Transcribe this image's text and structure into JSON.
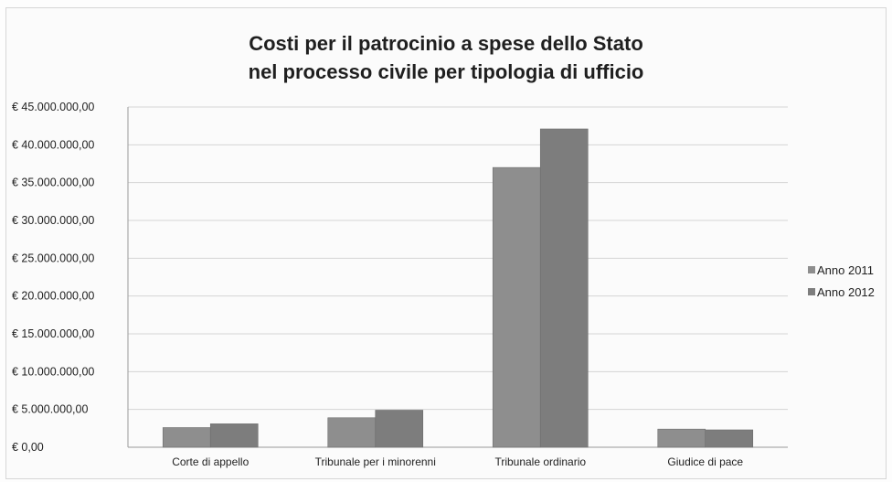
{
  "chart_data": {
    "type": "bar",
    "title": "Costi per il patrocinio a spese dello Stato",
    "subtitle": "nel processo civile per tipologia di ufficio",
    "categories": [
      "Corte di appello",
      "Tribunale per i minorenni",
      "Tribunale ordinario",
      "Giudice di pace"
    ],
    "series": [
      {
        "name": "Anno 2011",
        "values": [
          2600000,
          3900000,
          37000000,
          2400000
        ],
        "color": "#8e8e8e"
      },
      {
        "name": "Anno 2012",
        "values": [
          3100000,
          4900000,
          42100000,
          2300000
        ],
        "color": "#7d7d7d"
      }
    ],
    "ylim": [
      0,
      45000000
    ],
    "yticks": [
      0,
      5000000,
      10000000,
      15000000,
      20000000,
      25000000,
      30000000,
      35000000,
      40000000,
      45000000
    ],
    "ytick_labels": [
      "€ 0,00",
      "€ 5.000.000,00",
      "€ 10.000.000,00",
      "€ 15.000.000,00",
      "€ 20.000.000,00",
      "€ 25.000.000,00",
      "€ 30.000.000,00",
      "€ 35.000.000,00",
      "€ 40.000.000,00",
      "€ 45.000.000,00"
    ],
    "grid": true,
    "legend_position": "right"
  }
}
